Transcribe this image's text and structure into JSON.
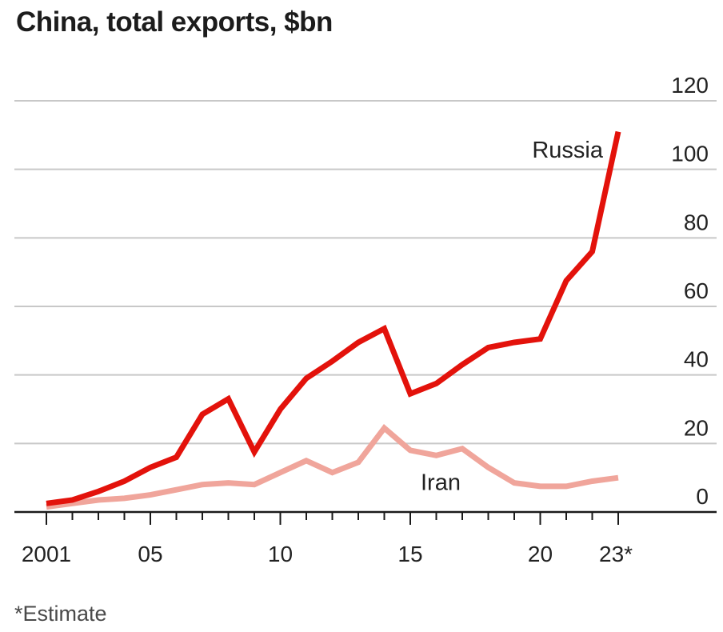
{
  "chart_data": {
    "type": "line",
    "title": "China, total exports, $bn",
    "footnote": "*Estimate",
    "x": [
      2001,
      2002,
      2003,
      2004,
      2005,
      2006,
      2007,
      2008,
      2009,
      2010,
      2011,
      2012,
      2013,
      2014,
      2015,
      2016,
      2017,
      2018,
      2019,
      2020,
      2021,
      2022,
      2023
    ],
    "x_tick_values": [
      2001,
      2005,
      2010,
      2015,
      2020,
      2023
    ],
    "x_tick_labels": [
      "2001",
      "05",
      "10",
      "15",
      "20",
      "23*"
    ],
    "ylim": [
      0,
      120
    ],
    "y_ticks": [
      0,
      20,
      40,
      60,
      80,
      100,
      120
    ],
    "y_tick_labels": [
      "0",
      "20",
      "40",
      "60",
      "80",
      "100",
      "120"
    ],
    "grid": true,
    "series": [
      {
        "name": "Russia",
        "color": "#e3120b",
        "values": [
          2.5,
          3.5,
          6,
          9,
          13,
          16,
          28.5,
          33,
          17.5,
          30,
          39,
          44,
          49.5,
          53.5,
          34.5,
          37.5,
          43,
          48,
          49.5,
          50.5,
          67.5,
          76,
          111
        ]
      },
      {
        "name": "Iran",
        "color": "#f0a59b",
        "values": [
          1.5,
          2.5,
          3.5,
          4,
          5,
          6.5,
          8,
          8.5,
          8,
          11.5,
          15,
          11.5,
          14.5,
          24.5,
          18,
          16.5,
          18.5,
          13,
          8.5,
          7.5,
          7.5,
          9,
          10
        ]
      }
    ]
  }
}
